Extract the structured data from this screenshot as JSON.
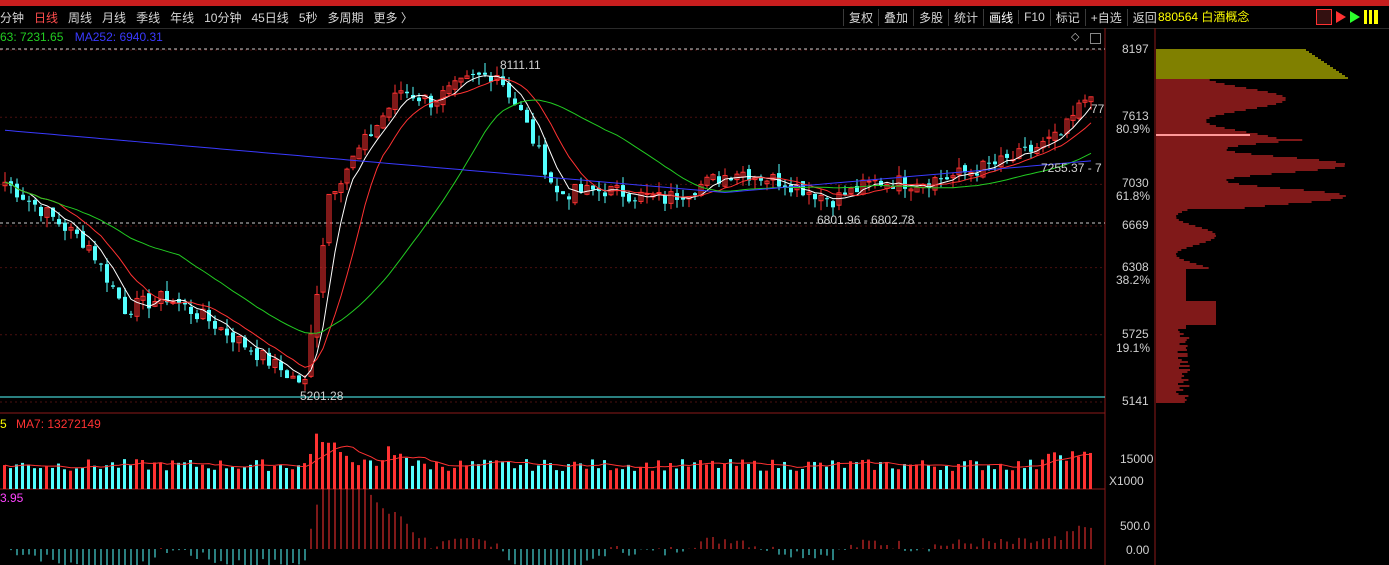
{
  "toolbar": {
    "periods": [
      "分钟",
      "日线",
      "周线",
      "月线",
      "季线",
      "年线",
      "10分钟",
      "45日线",
      "5秒",
      "多周期",
      "更多 〉"
    ],
    "active_period": "日线",
    "tools": [
      "复权",
      "叠加",
      "多股",
      "统计",
      "画线",
      "F10",
      "标记",
      "+自选",
      "返回"
    ],
    "stock": "880564 白酒概念"
  },
  "legend": {
    "ma_a": "63: 7231.65",
    "ma_b": "MA252: 6940.31",
    "vol_a": "5",
    "vol_b": "MA7: 13272149",
    "macd": "3.95"
  },
  "price_axis": [
    "8197",
    "7613",
    "7030",
    "6669",
    "6308",
    "5725",
    "5141"
  ],
  "fib_levels": [
    "80.9%",
    "61.8%",
    "38.2%",
    "19.1%"
  ],
  "annotations": {
    "high": "8111.11",
    "low": "5201.28",
    "range_mid": "6801.96 - 6802.78",
    "range_right": "7255.37 - 7",
    "last_tag": "77"
  },
  "volume_axis": [
    "15000",
    "X1000"
  ],
  "macd_axis": [
    "500.0",
    "0.00"
  ],
  "colors": {
    "up": "#ff3232",
    "down": "#54ffff",
    "ma5": "#ffffff",
    "ma10": "#ff3232",
    "ma60": "#22cc22",
    "ma252": "#3a3aff",
    "accent": "#ffff00"
  }
}
